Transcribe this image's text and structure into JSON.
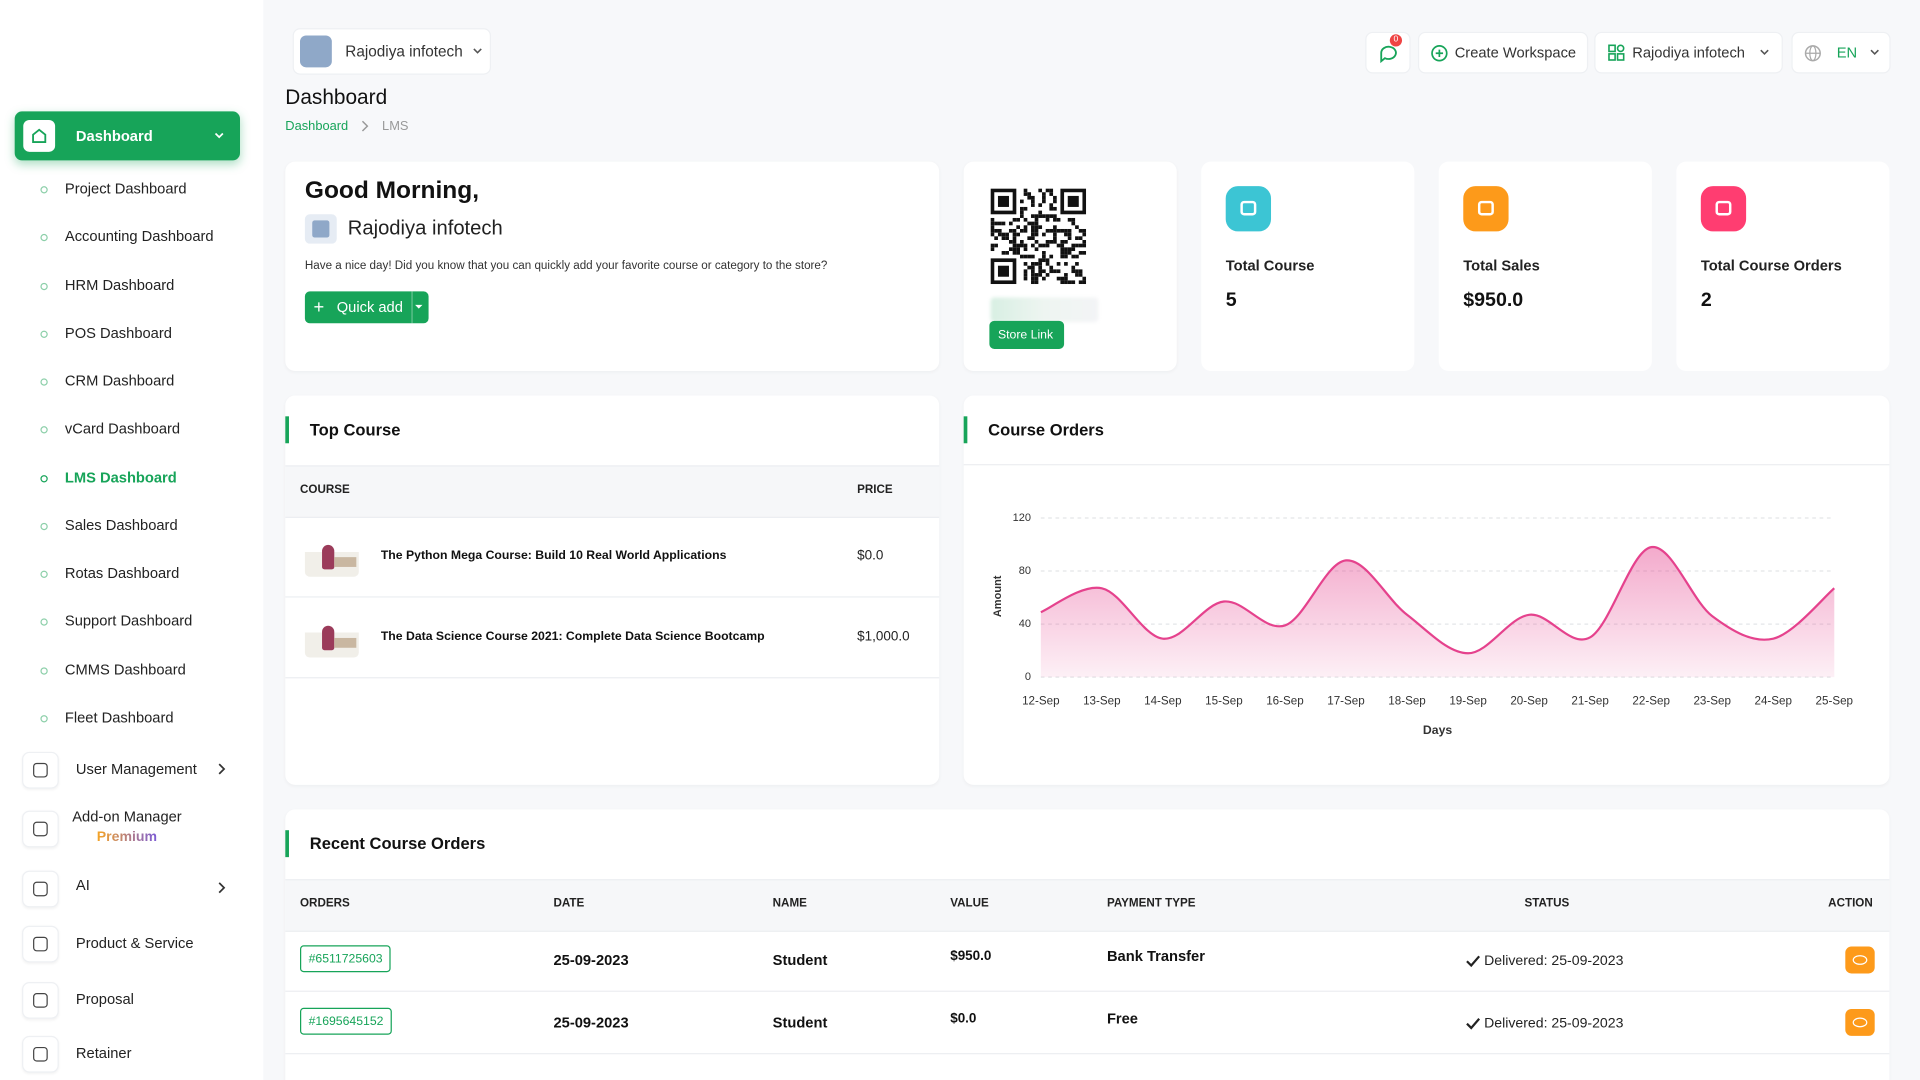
{
  "header": {
    "workspace": "Rajodiya infotech",
    "notification_count": 0,
    "create_workspace": "Create Workspace",
    "user_workspace": "Rajodiya infotech",
    "language": "EN"
  },
  "page": {
    "title": "Dashboard",
    "breadcrumb": [
      "Dashboard",
      "LMS"
    ]
  },
  "sidebar": {
    "active": "Dashboard",
    "submenu": [
      "Project Dashboard",
      "Accounting Dashboard",
      "HRM Dashboard",
      "POS Dashboard",
      "CRM Dashboard",
      "vCard Dashboard",
      "LMS Dashboard",
      "Sales Dashboard",
      "Rotas Dashboard",
      "Support Dashboard",
      "CMMS Dashboard",
      "Fleet Dashboard"
    ],
    "menu": [
      {
        "label": "User Management"
      },
      {
        "label": "Add-on Manager",
        "badge": "Premium"
      },
      {
        "label": "AI"
      },
      {
        "label": "Product & Service"
      },
      {
        "label": "Proposal"
      },
      {
        "label": "Retainer"
      }
    ]
  },
  "welcome": {
    "greeting": "Good Morning,",
    "company": "Rajodiya infotech",
    "message": "Have a nice day! Did you know that you can quickly add your favorite course or category to the store?",
    "button": "Quick add"
  },
  "store": {
    "button": "Store Link"
  },
  "stats": [
    {
      "label": "Total Course",
      "value": 5
    },
    {
      "label": "Total Sales",
      "value": "$950.0"
    },
    {
      "label": "Total Course Orders",
      "value": 2
    }
  ],
  "top_course": {
    "title": "Top Course",
    "columns": [
      "COURSE",
      "PRICE"
    ],
    "rows": [
      [
        "The Python Mega Course: Build 10 Real World Applications",
        "$0.0"
      ],
      [
        "The Data Science Course 2021: Complete Data Science Bootcamp",
        "$1,000.0"
      ]
    ]
  },
  "recent_orders": {
    "title": "Recent Course Orders",
    "columns": [
      "ORDERS",
      "DATE",
      "NAME",
      "VALUE",
      "PAYMENT TYPE",
      "STATUS",
      "ACTION"
    ],
    "rows": [
      [
        "#6511725603",
        "25-09-2023",
        "Student",
        "$950.0",
        "Bank Transfer",
        "Delivered: 25-09-2023"
      ],
      [
        "#1695645152",
        "25-09-2023",
        "Student",
        "$0.0",
        "Free",
        "Delivered: 25-09-2023"
      ]
    ]
  },
  "chart_data": {
    "type": "area",
    "title": "Course Orders",
    "x_label": "Days",
    "y_label": "Amount",
    "categories": [
      "12-Sep",
      "13-Sep",
      "14-Sep",
      "15-Sep",
      "16-Sep",
      "17-Sep",
      "18-Sep",
      "19-Sep",
      "20-Sep",
      "21-Sep",
      "22-Sep",
      "23-Sep",
      "24-Sep",
      "25-Sep"
    ],
    "values": [
      49,
      67,
      29,
      57,
      39,
      88,
      47,
      18,
      47,
      30,
      98,
      46,
      29,
      67
    ],
    "color": "#e5428d",
    "ylim": [
      0,
      120
    ],
    "yticks": [
      0,
      40,
      80,
      120
    ],
    "grid": true
  }
}
